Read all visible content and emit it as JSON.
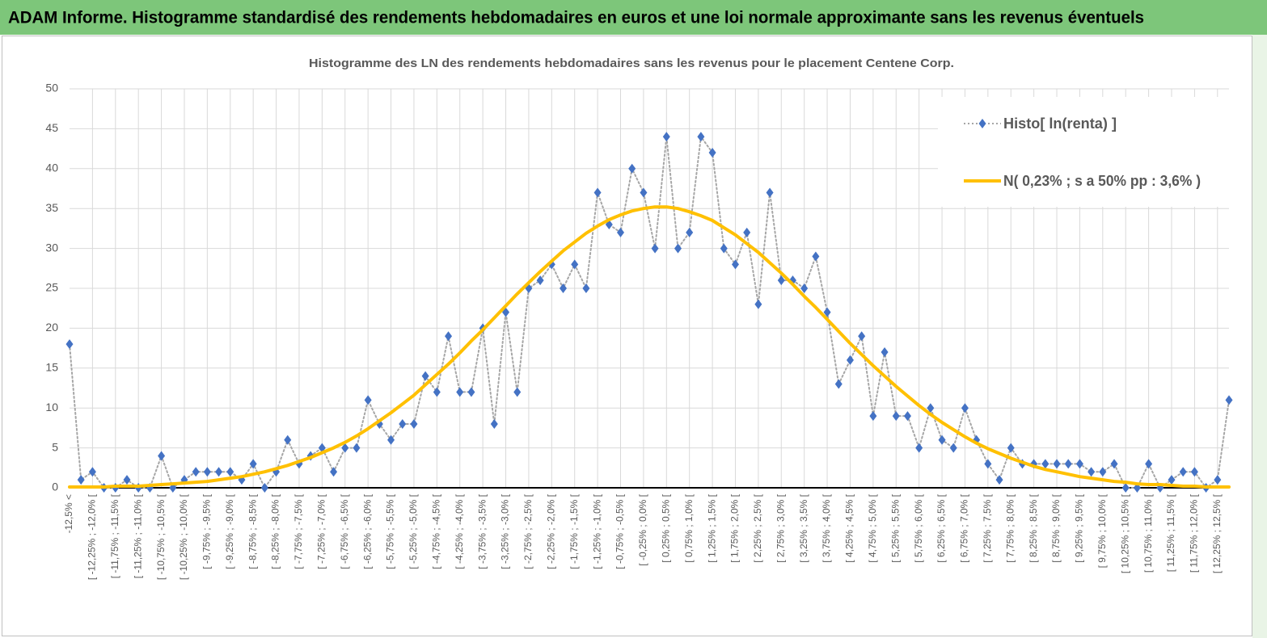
{
  "header": {
    "title": "ADAM Informe. Histogramme standardisé des rendements hebdomadaires en euros et une loi normale approximante sans les revenus éventuels"
  },
  "chart_data": {
    "type": "line",
    "title": "Histogramme  des LN des rendements  hebdomadaires sans les revenus pour le placement Centene Corp.",
    "categories": [
      "-12,5% <",
      null,
      "[ -12,25% ; -12,0% [",
      null,
      "[ -11,75% ; -11,5% [",
      null,
      "[ -11,25% ; -11,0% [",
      null,
      "[ -10,75% ; -10,5% [",
      null,
      "[ -10,25% ; -10,0% [",
      null,
      "[ -9,75% ; -9,5% [",
      null,
      "[ -9,25% ; -9,0% [",
      null,
      "[ -8,75% ; -8,5% [",
      null,
      "[ -8,25% ; -8,0% [",
      null,
      "[ -7,75% ; -7,5% [",
      null,
      "[ -7,25% ; -7,0% [",
      null,
      "[ -6,75% ; -6,5% [",
      null,
      "[ -6,25% ; -6,0% [",
      null,
      "[ -5,75% ; -5,5% [",
      null,
      "[ -5,25% ; -5,0% [",
      null,
      "[ -4,75% ; -4,5% [",
      null,
      "[ -4,25% ; -4,0% [",
      null,
      "[ -3,75% ; -3,5% [",
      null,
      "[ -3,25% ; -3,0% [",
      null,
      "[ -2,75% ; -2,5% [",
      null,
      "[ -2,25% ; -2,0% [",
      null,
      "[ -1,75% ; -1,5% [",
      null,
      "[ -1,25% ; -1,0% [",
      null,
      "[ -0,75% ; -0,5% [",
      null,
      "[ -0,25% ; 0,0% [",
      null,
      "[ 0,25% ; 0,5% [",
      null,
      "[ 0,75% ; 1,0% [",
      null,
      "[ 1,25% ; 1,5% [",
      null,
      "[ 1,75% ; 2,0% [",
      null,
      "[ 2,25% ; 2,5% [",
      null,
      "[ 2,75% ; 3,0% [",
      null,
      "[ 3,25% ; 3,5% [",
      null,
      "[ 3,75% ; 4,0% [",
      null,
      "[ 4,25% ; 4,5% [",
      null,
      "[ 4,75% ; 5,0% [",
      null,
      "[ 5,25% ; 5,5% [",
      null,
      "[ 5,75% ; 6,0% [",
      null,
      "[ 6,25% ; 6,5% [",
      null,
      "[ 6,75% ; 7,0% [",
      null,
      "[ 7,25% ; 7,5% [",
      null,
      "[ 7,75% ; 8,0% [",
      null,
      "[ 8,25% ; 8,5% [",
      null,
      "[ 8,75% ; 9,0% [",
      null,
      "[ 9,25% ; 9,5% [",
      null,
      "[ 9,75% ; 10,0% [",
      null,
      "[ 10,25% ; 10,5% [",
      null,
      "[ 10,75% ; 11,0% [",
      null,
      "[ 11,25% ; 11,5% [",
      null,
      "[ 11,75% ; 12,0% [",
      null,
      "[ 12,25% ; 12,5% [",
      null
    ],
    "series": [
      {
        "name": "Histo[ ln(renta) ]",
        "color": "#4472c4",
        "line_color": "#a6a6a6",
        "marker": "diamond",
        "line_style": "dotted",
        "values": [
          18,
          1,
          2,
          0,
          0,
          1,
          0,
          0,
          4,
          0,
          1,
          2,
          2,
          2,
          2,
          1,
          3,
          0,
          2,
          6,
          3,
          4,
          5,
          2,
          5,
          5,
          11,
          8,
          6,
          8,
          8,
          14,
          12,
          19,
          12,
          12,
          20,
          8,
          22,
          12,
          25,
          26,
          28,
          25,
          28,
          25,
          37,
          33,
          32,
          40,
          37,
          30,
          44,
          30,
          32,
          44,
          42,
          30,
          28,
          32,
          23,
          37,
          26,
          26,
          25,
          29,
          22,
          13,
          16,
          19,
          9,
          17,
          9,
          9,
          5,
          10,
          6,
          5,
          10,
          6,
          3,
          1,
          5,
          3,
          3,
          3,
          3,
          3,
          3,
          2,
          2,
          3,
          0,
          0,
          3,
          0,
          1,
          2,
          2,
          0,
          1,
          11
        ]
      },
      {
        "name": "N( 0,23% ; s a 50% pp : 3,6% )",
        "color": "#ffc000",
        "marker": "none",
        "line_style": "solid",
        "values": [
          0.1,
          0.1,
          0.1,
          0.1,
          0.2,
          0.2,
          0.2,
          0.3,
          0.4,
          0.5,
          0.6,
          0.7,
          0.8,
          1.0,
          1.2,
          1.4,
          1.7,
          2.0,
          2.4,
          2.8,
          3.3,
          3.8,
          4.4,
          5.0,
          5.7,
          6.5,
          7.4,
          8.4,
          9.4,
          10.5,
          11.6,
          12.9,
          14.2,
          15.5,
          16.9,
          18.4,
          19.8,
          21.3,
          22.8,
          24.3,
          25.7,
          27.1,
          28.4,
          29.7,
          30.8,
          31.9,
          32.8,
          33.6,
          34.2,
          34.7,
          35.0,
          35.2,
          35.2,
          35.0,
          34.6,
          34.1,
          33.5,
          32.6,
          31.7,
          30.6,
          29.5,
          28.2,
          26.9,
          25.5,
          24.0,
          22.6,
          21.1,
          19.6,
          18.1,
          16.7,
          15.3,
          14.0,
          12.7,
          11.5,
          10.3,
          9.2,
          8.2,
          7.3,
          6.4,
          5.6,
          4.9,
          4.3,
          3.7,
          3.2,
          2.7,
          2.3,
          2.0,
          1.7,
          1.4,
          1.2,
          1.0,
          0.8,
          0.7,
          0.5,
          0.4,
          0.4,
          0.3,
          0.2,
          0.2,
          0.1,
          0.1,
          0.1
        ]
      }
    ],
    "ylim": [
      0,
      50
    ],
    "yticks": [
      0,
      5,
      10,
      15,
      20,
      25,
      30,
      35,
      40,
      45,
      50
    ],
    "grid": true,
    "legend": "upper right"
  }
}
